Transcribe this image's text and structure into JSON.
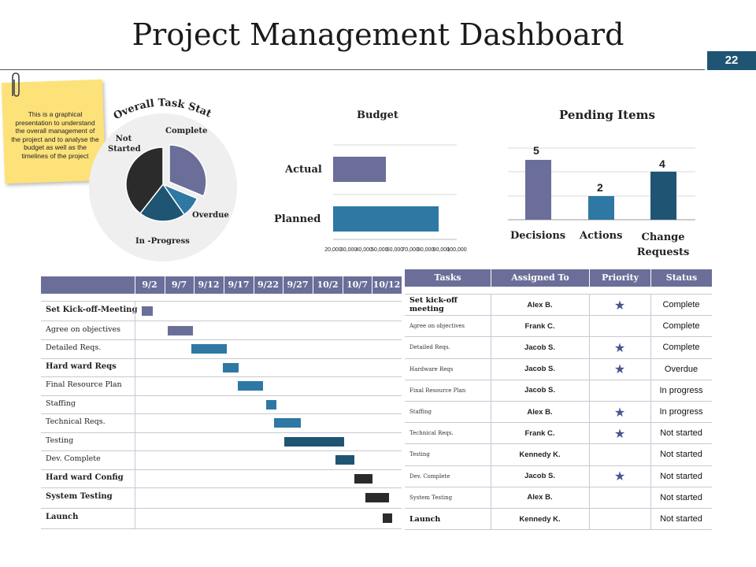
{
  "header": {
    "title": "Project Management Dashboard",
    "slide_number": "22"
  },
  "note": {
    "text": "This is a graphical presentation to understand the overall management of the project and to analyse the budget as well as the timelines of the project"
  },
  "task_status": {
    "title": "Overall Task Status",
    "labels": {
      "complete": "Complete",
      "not_started": "Not Started",
      "overdue": "Overdue",
      "in_progress": "In -Progress"
    }
  },
  "budget": {
    "title": "Budget",
    "row_actual": "Actual",
    "row_planned": "Planned",
    "ticks": [
      "20,000",
      "30,000",
      "40,000",
      "50,000",
      "60,000",
      "70,000",
      "80,000",
      "90,000",
      "100,000"
    ]
  },
  "pending": {
    "title": "Pending Items",
    "categories": [
      "Decisions",
      "Actions",
      "Change Requests"
    ],
    "values": [
      "5",
      "2",
      "4"
    ]
  },
  "gantt": {
    "dates": [
      "9/2",
      "9/7",
      "9/12",
      "9/17",
      "9/22",
      "9/27",
      "10/2",
      "10/7",
      "10/12"
    ],
    "tasks": [
      "Set Kick-off-Meeting",
      "Agree on objectives",
      "Detailed Reqs.",
      "Hard ward Reqs",
      "Final Resource Plan",
      "Staffing",
      "Technical Reqs.",
      "Testing",
      "Dev. Complete",
      "Hard ward Config",
      "System Testing",
      "Launch"
    ]
  },
  "table": {
    "headers": {
      "tasks": "Tasks",
      "assigned": "Assigned To",
      "priority": "Priority",
      "status": "Status"
    },
    "star": "★",
    "rows": [
      {
        "task": "Set kick-off meeting",
        "assigned": "Alex B.",
        "status": "Complete"
      },
      {
        "task": "Agree on objectives",
        "assigned": "Frank C.",
        "status": "Complete"
      },
      {
        "task": "Detailed Reqs.",
        "assigned": "Jacob S.",
        "status": "Complete"
      },
      {
        "task": "Hardware Reqs",
        "assigned": "Jacob S.",
        "status": "Overdue"
      },
      {
        "task": "Final Resource Plan",
        "assigned": "Jacob S.",
        "status": "In progress"
      },
      {
        "task": "Staffing",
        "assigned": "Alex B.",
        "status": "In progress"
      },
      {
        "task": "Technical Reqs.",
        "assigned": "Frank C.",
        "status": "Not started"
      },
      {
        "task": "Testing",
        "assigned": "Kennedy K.",
        "status": "Not started"
      },
      {
        "task": "Dev. Complete",
        "assigned": "Jacob S.",
        "status": "Not started"
      },
      {
        "task": "System Testing",
        "assigned": "Alex B.",
        "status": "Not started"
      },
      {
        "task": "Launch",
        "assigned": "Kennedy K.",
        "status": "Not started"
      }
    ]
  },
  "colors": {
    "navy": "#1f5573",
    "slate": "#6a6e99",
    "teal": "#2e78a3",
    "dark": "#2b2b2b",
    "sticky": "#fde27a"
  }
}
